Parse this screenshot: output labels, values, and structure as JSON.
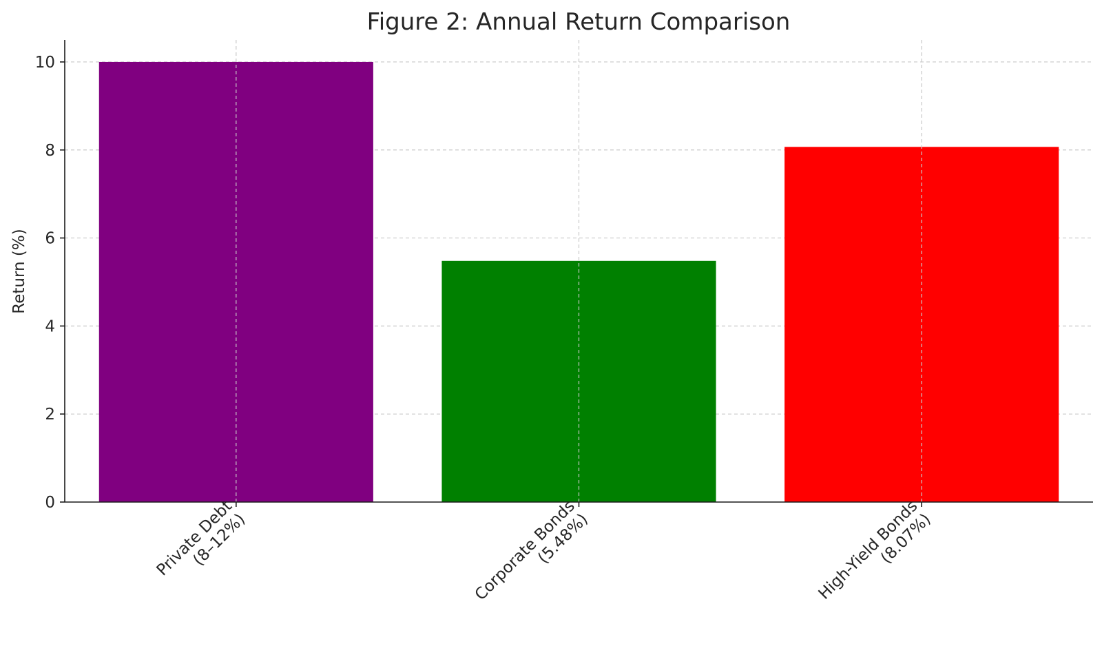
{
  "chart_data": {
    "type": "bar",
    "title": "Figure 2: Annual Return Comparison",
    "xlabel": "",
    "ylabel": "Return (%)",
    "ylim": [
      0,
      10.5
    ],
    "yticks": [
      0,
      2,
      4,
      6,
      8,
      10
    ],
    "grid": true,
    "categories": [
      [
        "Private Debt",
        "(8–12%)"
      ],
      [
        "Corporate Bonds",
        "(5.48%)"
      ],
      [
        "High-Yield Bonds",
        "(8.07%)"
      ]
    ],
    "values": [
      10,
      5.48,
      8.07
    ],
    "colors": [
      "#800080",
      "#008000",
      "#ff0000"
    ]
  }
}
